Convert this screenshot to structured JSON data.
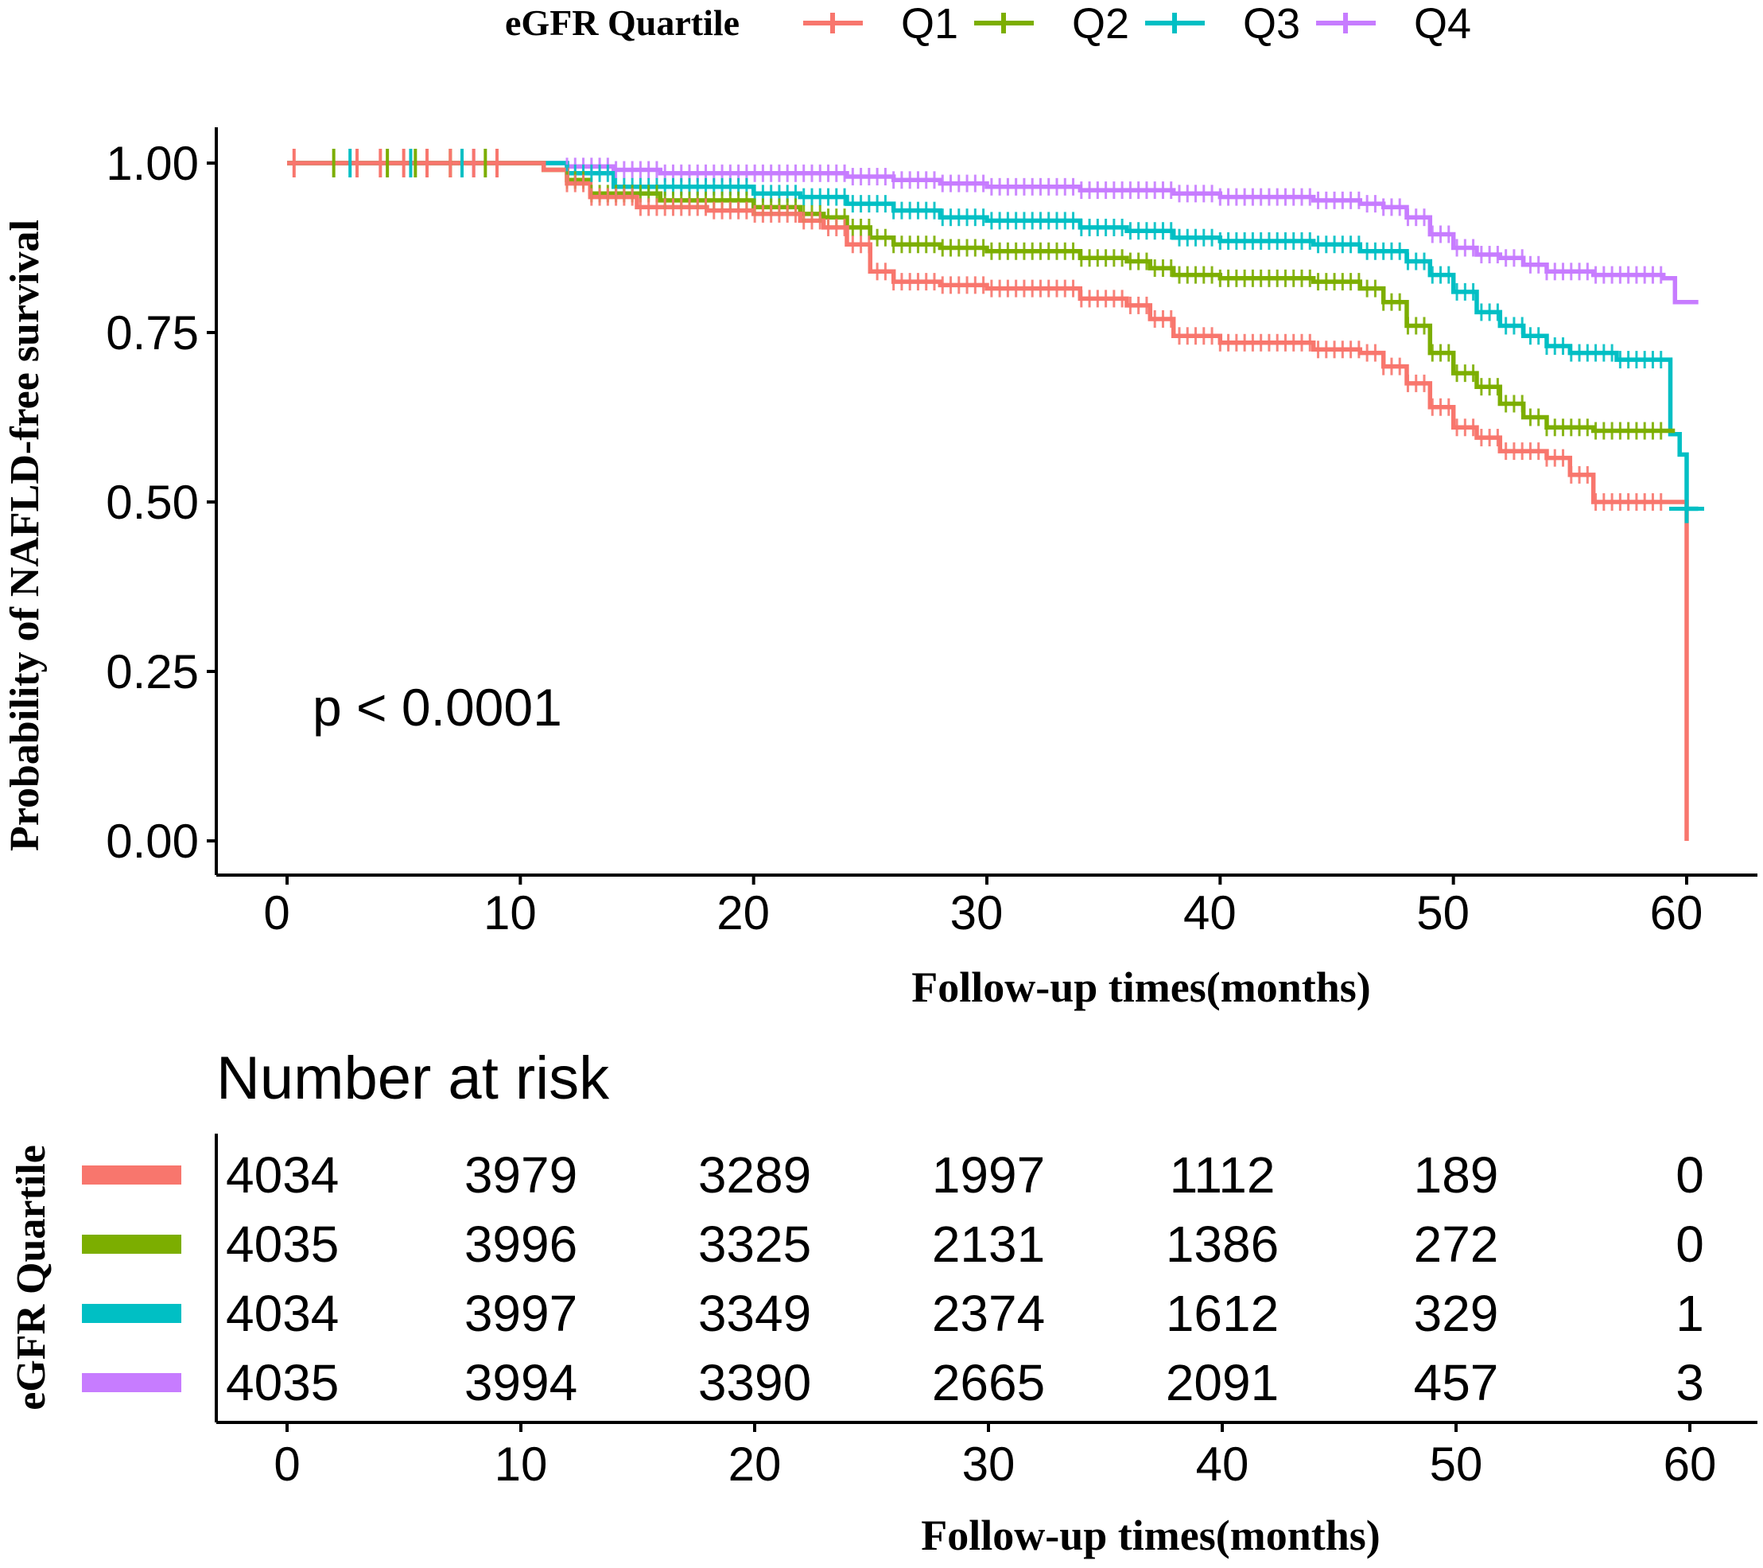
{
  "chart_data": [
    {
      "type": "line",
      "subtype": "kaplan-meier",
      "title": "",
      "legend_title": "eGFR Quartile",
      "legend_position": "top",
      "xlabel": "Follow-up times(months)",
      "ylabel": "Probability of NAFLD-free survival",
      "xlim": [
        0,
        60
      ],
      "ylim": [
        0,
        1
      ],
      "xticks": [
        "0",
        "10",
        "20",
        "30",
        "40",
        "50",
        "60"
      ],
      "yticks": [
        "0.00",
        "0.25",
        "0.50",
        "0.75",
        "1.00"
      ],
      "annotation": "p < 0.0001",
      "series": [
        {
          "name": "Q1",
          "color": "#F8766D",
          "x": [
            0,
            10,
            11,
            12,
            13,
            15,
            18,
            20,
            22,
            23,
            24,
            25,
            26,
            28,
            30,
            34,
            36,
            37,
            38,
            40,
            44,
            46,
            47,
            48,
            49,
            50,
            51,
            52,
            54,
            55,
            56,
            58,
            59.9,
            60
          ],
          "y": [
            1.0,
            1.0,
            0.99,
            0.97,
            0.95,
            0.935,
            0.93,
            0.925,
            0.915,
            0.905,
            0.88,
            0.84,
            0.825,
            0.82,
            0.815,
            0.8,
            0.79,
            0.77,
            0.745,
            0.735,
            0.725,
            0.72,
            0.7,
            0.675,
            0.64,
            0.61,
            0.595,
            0.575,
            0.565,
            0.54,
            0.5,
            0.5,
            0.5,
            0.0
          ]
        },
        {
          "name": "Q2",
          "color": "#7CAE00",
          "x": [
            0,
            10,
            11,
            12,
            13,
            16,
            20,
            22,
            23,
            24,
            25,
            26,
            28,
            30,
            34,
            36,
            37,
            38,
            40,
            44,
            46,
            47,
            48,
            49,
            50,
            51,
            52,
            53,
            54,
            56,
            58,
            59.5
          ],
          "y": [
            1.0,
            1.0,
            0.99,
            0.975,
            0.955,
            0.945,
            0.935,
            0.925,
            0.92,
            0.905,
            0.89,
            0.88,
            0.875,
            0.87,
            0.86,
            0.855,
            0.845,
            0.835,
            0.83,
            0.825,
            0.815,
            0.795,
            0.76,
            0.72,
            0.69,
            0.67,
            0.645,
            0.625,
            0.61,
            0.605,
            0.605,
            0.605
          ]
        },
        {
          "name": "Q3",
          "color": "#00BFC4",
          "x": [
            0,
            10,
            12,
            14,
            20,
            22,
            24,
            26,
            28,
            30,
            34,
            36,
            38,
            40,
            44,
            46,
            48,
            49,
            50,
            51,
            52,
            53,
            54,
            55,
            57,
            59,
            59.3,
            59.7,
            60,
            60.5
          ],
          "y": [
            1.0,
            1.0,
            0.985,
            0.965,
            0.955,
            0.95,
            0.94,
            0.93,
            0.92,
            0.915,
            0.905,
            0.9,
            0.89,
            0.885,
            0.88,
            0.87,
            0.855,
            0.835,
            0.81,
            0.78,
            0.76,
            0.745,
            0.73,
            0.72,
            0.71,
            0.71,
            0.6,
            0.57,
            0.49,
            0.49
          ]
        },
        {
          "name": "Q4",
          "color": "#C77CFF",
          "x": [
            0,
            10,
            12,
            14,
            16,
            20,
            24,
            26,
            28,
            30,
            34,
            38,
            40,
            44,
            46,
            47,
            48,
            49,
            50,
            51,
            52,
            53,
            54,
            56,
            58,
            59,
            59.5,
            60.5
          ],
          "y": [
            1.0,
            1.0,
            0.995,
            0.99,
            0.985,
            0.985,
            0.98,
            0.975,
            0.97,
            0.965,
            0.96,
            0.955,
            0.95,
            0.945,
            0.94,
            0.935,
            0.92,
            0.895,
            0.875,
            0.865,
            0.86,
            0.85,
            0.84,
            0.835,
            0.835,
            0.83,
            0.795,
            0.795
          ]
        }
      ],
      "censor_marks": {
        "Q1": [
          0.3,
          3,
          4,
          5,
          6,
          7,
          8,
          9
        ],
        "Q2": [
          2,
          4.3,
          5.5,
          7,
          8.5
        ],
        "Q3": [
          2.7,
          5.3,
          7.5,
          60
        ],
        "Q4": [
          6,
          8,
          9
        ]
      }
    },
    {
      "type": "table",
      "title": "Number at risk",
      "row_axis_label": "eGFR Quartile",
      "xlabel": "Follow-up times(months)",
      "xlim": [
        0,
        60
      ],
      "times": [
        0,
        10,
        20,
        30,
        40,
        50,
        60
      ],
      "xticks": [
        "0",
        "10",
        "20",
        "30",
        "40",
        "50",
        "60"
      ],
      "rows": [
        {
          "name": "Q1",
          "color": "#F8766D",
          "values": [
            "4034",
            "3979",
            "3289",
            "1997",
            "1112",
            "189",
            "0"
          ]
        },
        {
          "name": "Q2",
          "color": "#7CAE00",
          "values": [
            "4035",
            "3996",
            "3325",
            "2131",
            "1386",
            "272",
            "0"
          ]
        },
        {
          "name": "Q3",
          "color": "#00BFC4",
          "values": [
            "4034",
            "3997",
            "3349",
            "2374",
            "1612",
            "329",
            "1"
          ]
        },
        {
          "name": "Q4",
          "color": "#C77CFF",
          "values": [
            "4035",
            "3994",
            "3390",
            "2665",
            "2091",
            "457",
            "3"
          ]
        }
      ]
    }
  ]
}
